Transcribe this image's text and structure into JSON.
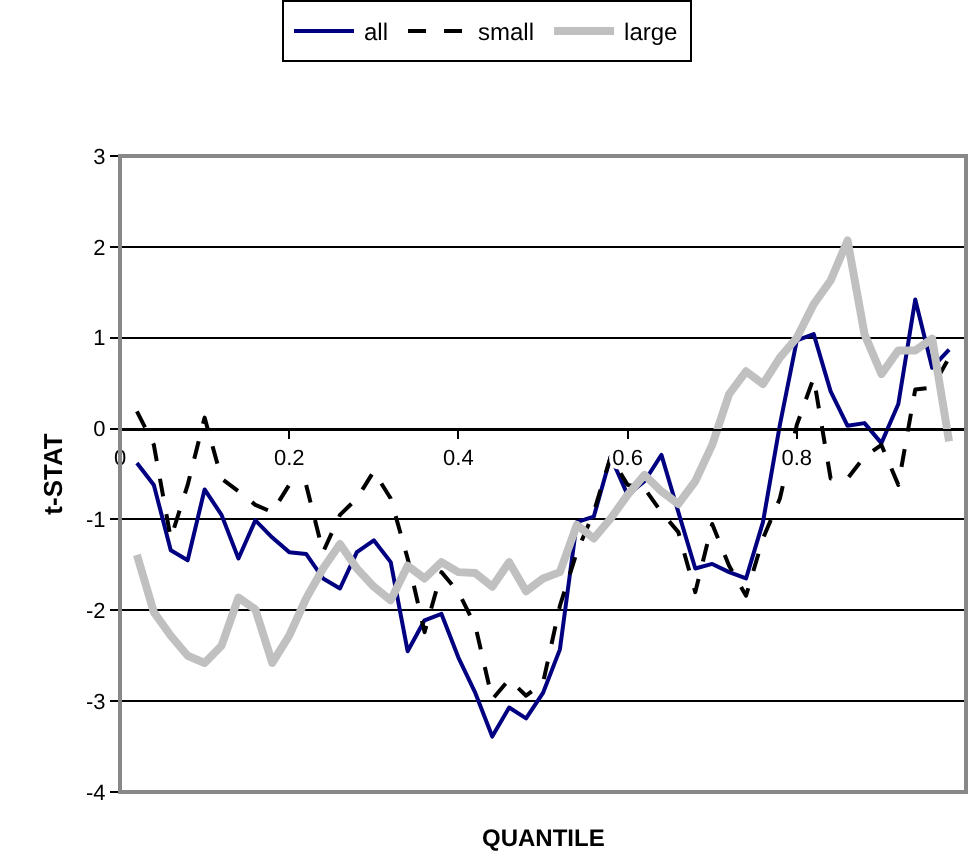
{
  "chart_data": {
    "type": "line",
    "xlabel": "QUANTILE",
    "ylabel": "t-STAT",
    "x": [
      0.02,
      0.04,
      0.06,
      0.08,
      0.1,
      0.12,
      0.14,
      0.16,
      0.18,
      0.2,
      0.22,
      0.24,
      0.26,
      0.28,
      0.3,
      0.32,
      0.34,
      0.36,
      0.38,
      0.4,
      0.42,
      0.44,
      0.46,
      0.48,
      0.5,
      0.52,
      0.54,
      0.56,
      0.58,
      0.6,
      0.62,
      0.64,
      0.66,
      0.68,
      0.7,
      0.72,
      0.74,
      0.76,
      0.78,
      0.8,
      0.82,
      0.84,
      0.86,
      0.88,
      0.9,
      0.92,
      0.94,
      0.96,
      0.98
    ],
    "series": [
      {
        "name": "all",
        "color": "#000080",
        "line_style": "solid",
        "values": [
          -0.38,
          -0.62,
          -1.34,
          -1.45,
          -0.67,
          -0.95,
          -1.43,
          -1.01,
          -1.2,
          -1.36,
          -1.38,
          -1.65,
          -1.76,
          -1.36,
          -1.23,
          -1.47,
          -2.45,
          -2.11,
          -2.04,
          -2.52,
          -2.91,
          -3.39,
          -3.07,
          -3.19,
          -2.91,
          -2.43,
          -1.03,
          -0.97,
          -0.31,
          -0.73,
          -0.58,
          -0.29,
          -0.92,
          -1.54,
          -1.49,
          -1.58,
          -1.65,
          -1.03,
          0.04,
          0.97,
          1.04,
          0.41,
          0.03,
          0.06,
          -0.16,
          0.27,
          1.42,
          0.67,
          0.87
        ]
      },
      {
        "name": "small",
        "color": "#000000",
        "line_style": "dashed",
        "values": [
          0.19,
          -0.18,
          -1.21,
          -0.62,
          0.12,
          -0.55,
          -0.69,
          -0.84,
          -0.92,
          -0.62,
          -0.62,
          -1.36,
          -0.95,
          -0.77,
          -0.47,
          -0.77,
          -1.43,
          -2.24,
          -1.58,
          -1.8,
          -2.17,
          -2.98,
          -2.76,
          -2.94,
          -2.8,
          -1.95,
          -1.36,
          -0.92,
          -0.31,
          -0.62,
          -0.66,
          -0.92,
          -1.14,
          -1.8,
          -1.05,
          -1.51,
          -1.84,
          -1.21,
          -0.77,
          0.04,
          0.56,
          -0.55,
          -0.55,
          -0.31,
          -0.18,
          -0.62,
          0.43,
          0.45,
          0.78
        ]
      },
      {
        "name": "large",
        "color": "#c0c0c0",
        "line_style": "solid",
        "values": [
          -1.39,
          -2.02,
          -2.28,
          -2.5,
          -2.58,
          -2.39,
          -1.86,
          -1.99,
          -2.58,
          -2.28,
          -1.87,
          -1.54,
          -1.27,
          -1.54,
          -1.74,
          -1.89,
          -1.51,
          -1.65,
          -1.47,
          -1.58,
          -1.59,
          -1.74,
          -1.47,
          -1.79,
          -1.65,
          -1.58,
          -1.06,
          -1.21,
          -0.99,
          -0.73,
          -0.51,
          -0.69,
          -0.83,
          -0.58,
          -0.18,
          0.38,
          0.63,
          0.49,
          0.78,
          1.0,
          1.37,
          1.63,
          2.07,
          1.04,
          0.6,
          0.86,
          0.86,
          0.99,
          -0.14
        ]
      }
    ],
    "xlim": [
      0,
      1
    ],
    "xticks": [
      0,
      0.2,
      0.4,
      0.6,
      0.8
    ],
    "ylim": [
      -4,
      3
    ],
    "yticks": [
      -4,
      -3,
      -2,
      -1,
      0,
      1,
      2,
      3
    ],
    "grid": "y",
    "legend": "top",
    "marker": "none"
  }
}
